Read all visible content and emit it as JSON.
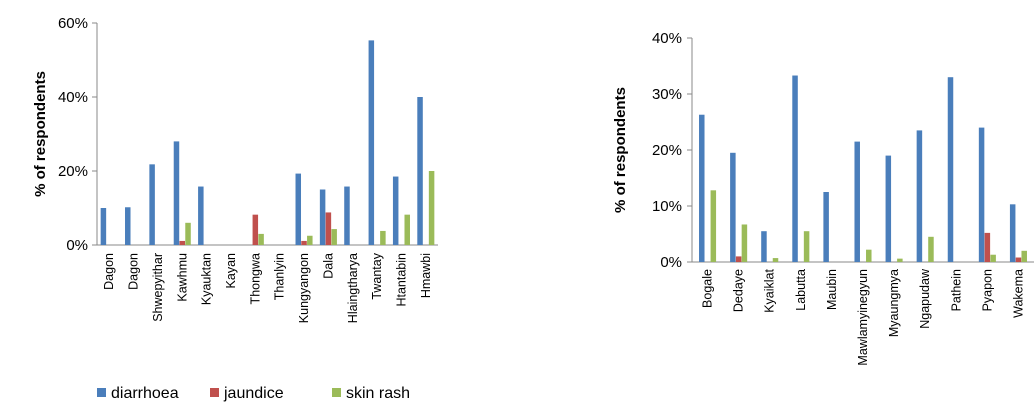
{
  "chart_data": [
    {
      "type": "bar",
      "ylabel": "% of respondents",
      "ylim": [
        0,
        60
      ],
      "yticks": [
        "0%",
        "20%",
        "40%",
        "60%"
      ],
      "categories": [
        "Dagon",
        "Dagon",
        "Shwepyithar",
        "Kawhmu",
        "Kyauktan",
        "Kayan",
        "Thongwa",
        "Thanlyin",
        "Kungyangon",
        "Dala",
        "Hlaingtharya",
        "Twantay",
        "Htantabin",
        "Hmawbi"
      ],
      "series": [
        {
          "name": "diarrhoea",
          "color": "#4a7ebb",
          "values": [
            10,
            10.2,
            21.8,
            28,
            15.8,
            0,
            0,
            0,
            19.3,
            15,
            15.8,
            55.3,
            18.5,
            40
          ]
        },
        {
          "name": "jaundice",
          "color": "#c0504d",
          "values": [
            0,
            0,
            0,
            1.1,
            0,
            0,
            8.2,
            0,
            1.1,
            8.8,
            0,
            0,
            0,
            0
          ]
        },
        {
          "name": "skin rash",
          "color": "#9bbb59",
          "values": [
            0,
            0,
            0,
            6,
            0,
            0,
            3,
            0,
            2.5,
            4.3,
            0,
            3.8,
            8.2,
            20
          ]
        }
      ],
      "legend": "bottom"
    },
    {
      "type": "bar",
      "ylabel": "% of respondents",
      "ylim": [
        0,
        40
      ],
      "yticks": [
        "0%",
        "10%",
        "20%",
        "30%",
        "40%"
      ],
      "categories": [
        "Bogale",
        "Dedaye",
        "Kyaiklat",
        "Labutta",
        "Maubin",
        "Mawlamyinegyun",
        "Myaungmya",
        "Ngapudaw",
        "Pathein",
        "Pyapon",
        "Wakema"
      ],
      "series": [
        {
          "name": "diarrhoea",
          "color": "#4a7ebb",
          "values": [
            26.3,
            19.5,
            5.5,
            33.3,
            12.5,
            21.5,
            19,
            23.5,
            33,
            24,
            10.3
          ]
        },
        {
          "name": "jaundice",
          "color": "#c0504d",
          "values": [
            0,
            1,
            0,
            0,
            0,
            0,
            0,
            0,
            0,
            5.2,
            0.8
          ]
        },
        {
          "name": "skin rash",
          "color": "#9bbb59",
          "values": [
            12.8,
            6.7,
            0.7,
            5.5,
            0,
            2.2,
            0.6,
            4.5,
            0,
            1.3,
            2
          ]
        }
      ]
    }
  ]
}
